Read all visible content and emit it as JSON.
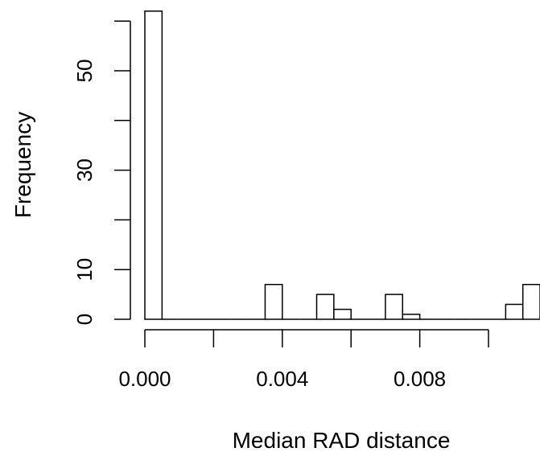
{
  "chart_data": {
    "type": "bar",
    "title": "",
    "xlabel": "Median RAD distance",
    "ylabel": "Frequency",
    "xlim": [
      0.0,
      0.0112
    ],
    "ylim": [
      0,
      62
    ],
    "bin_width": 0.0005,
    "bins": [
      {
        "x_start": 0.0,
        "x_end": 0.0005,
        "count": 62
      },
      {
        "x_start": 0.0005,
        "x_end": 0.001,
        "count": 0
      },
      {
        "x_start": 0.001,
        "x_end": 0.0015,
        "count": 0
      },
      {
        "x_start": 0.0015,
        "x_end": 0.002,
        "count": 0
      },
      {
        "x_start": 0.002,
        "x_end": 0.0025,
        "count": 0
      },
      {
        "x_start": 0.0025,
        "x_end": 0.003,
        "count": 0
      },
      {
        "x_start": 0.003,
        "x_end": 0.0035,
        "count": 0
      },
      {
        "x_start": 0.0035,
        "x_end": 0.004,
        "count": 7
      },
      {
        "x_start": 0.004,
        "x_end": 0.0045,
        "count": 0
      },
      {
        "x_start": 0.0045,
        "x_end": 0.005,
        "count": 0
      },
      {
        "x_start": 0.005,
        "x_end": 0.0055,
        "count": 5
      },
      {
        "x_start": 0.0055,
        "x_end": 0.006,
        "count": 2
      },
      {
        "x_start": 0.006,
        "x_end": 0.0065,
        "count": 0
      },
      {
        "x_start": 0.0065,
        "x_end": 0.007,
        "count": 0
      },
      {
        "x_start": 0.007,
        "x_end": 0.0075,
        "count": 5
      },
      {
        "x_start": 0.0075,
        "x_end": 0.008,
        "count": 1
      },
      {
        "x_start": 0.008,
        "x_end": 0.0085,
        "count": 0
      },
      {
        "x_start": 0.0085,
        "x_end": 0.009,
        "count": 0
      },
      {
        "x_start": 0.009,
        "x_end": 0.0095,
        "count": 0
      },
      {
        "x_start": 0.0095,
        "x_end": 0.01,
        "count": 0
      },
      {
        "x_start": 0.01,
        "x_end": 0.0105,
        "count": 0
      },
      {
        "x_start": 0.0105,
        "x_end": 0.011,
        "count": 3
      },
      {
        "x_start": 0.011,
        "x_end": 0.0115,
        "count": 7
      }
    ],
    "x_axis": {
      "ticks": [
        0.0,
        0.002,
        0.004,
        0.006,
        0.008,
        0.01
      ],
      "tick_labels": [
        "0.000",
        "",
        "0.004",
        "",
        "0.008",
        ""
      ]
    },
    "y_axis": {
      "ticks": [
        0,
        10,
        20,
        30,
        40,
        50,
        60
      ],
      "tick_labels": [
        "0",
        "10",
        "",
        "30",
        "",
        "50",
        ""
      ]
    },
    "grid": false,
    "legend": "none"
  }
}
